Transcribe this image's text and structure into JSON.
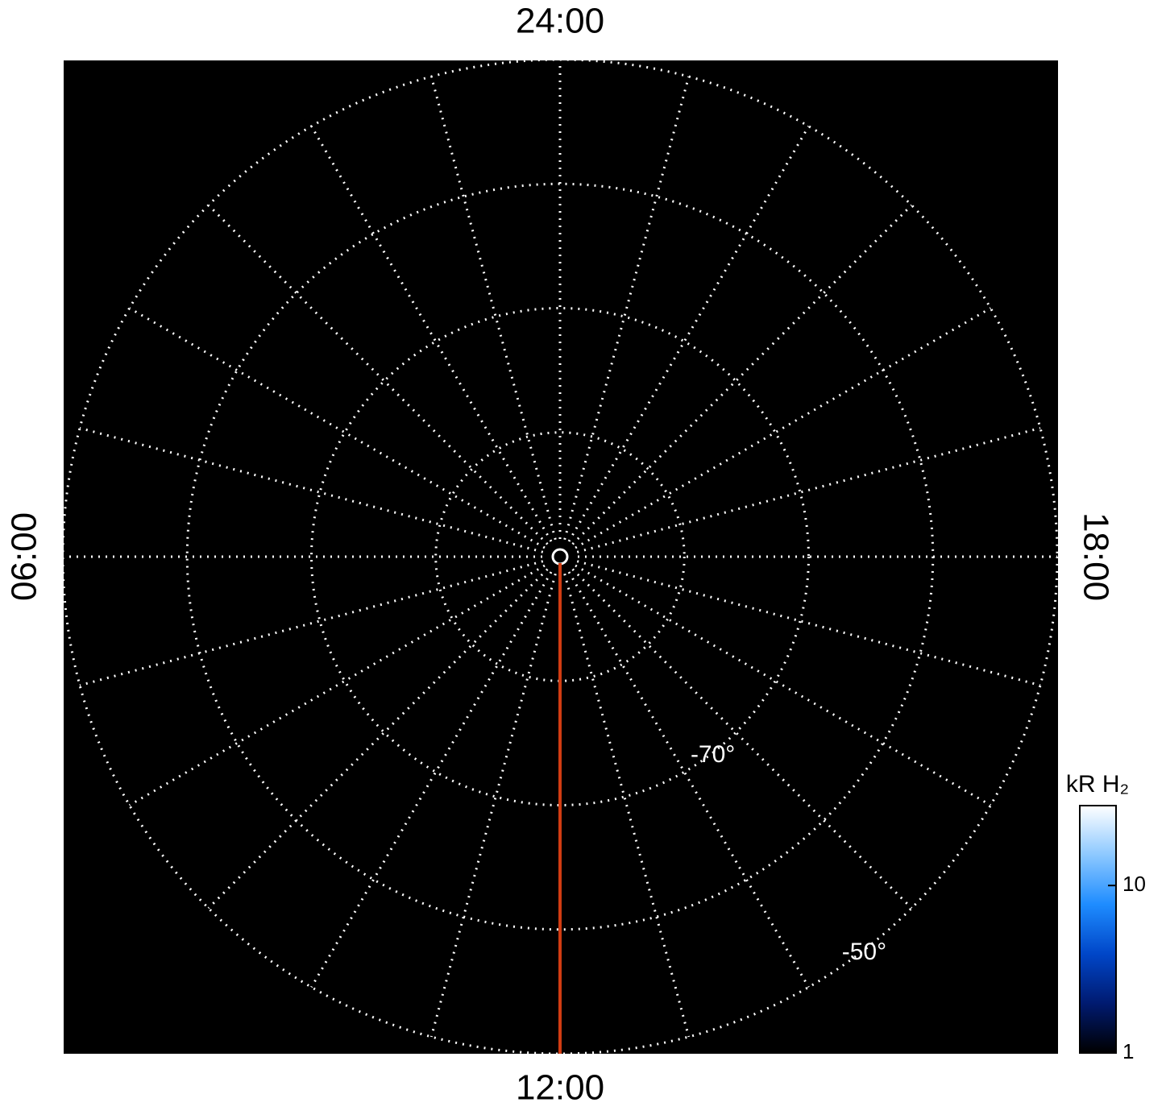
{
  "chart_data": {
    "type": "polar",
    "local_time_labels": [
      {
        "value": 24,
        "label": "24:00"
      },
      {
        "value": 18,
        "label": "18:00"
      },
      {
        "value": 12,
        "label": "12:00"
      },
      {
        "value": 6,
        "label": "06:00"
      }
    ],
    "rlim": [
      -90,
      -50
    ],
    "latitude_circles": [
      -50,
      -60,
      -70,
      -80
    ],
    "latitude_labels": [
      {
        "value": -70,
        "label": "-70°"
      },
      {
        "value": -50,
        "label": "-50°"
      }
    ],
    "meridian_step_hours": 1,
    "grid_color": "#ffffff",
    "background": "#000000",
    "marker_line": {
      "local_time": 12,
      "color": "#d13c12"
    },
    "colorbar": {
      "label": "kR H₂",
      "scale": "log",
      "lim": [
        1,
        30
      ],
      "ticks": [
        1,
        10
      ],
      "colors": [
        "#000000",
        "#001a70",
        "#0046c8",
        "#1e8cff",
        "#8cc8ff",
        "#ffffff"
      ]
    }
  }
}
